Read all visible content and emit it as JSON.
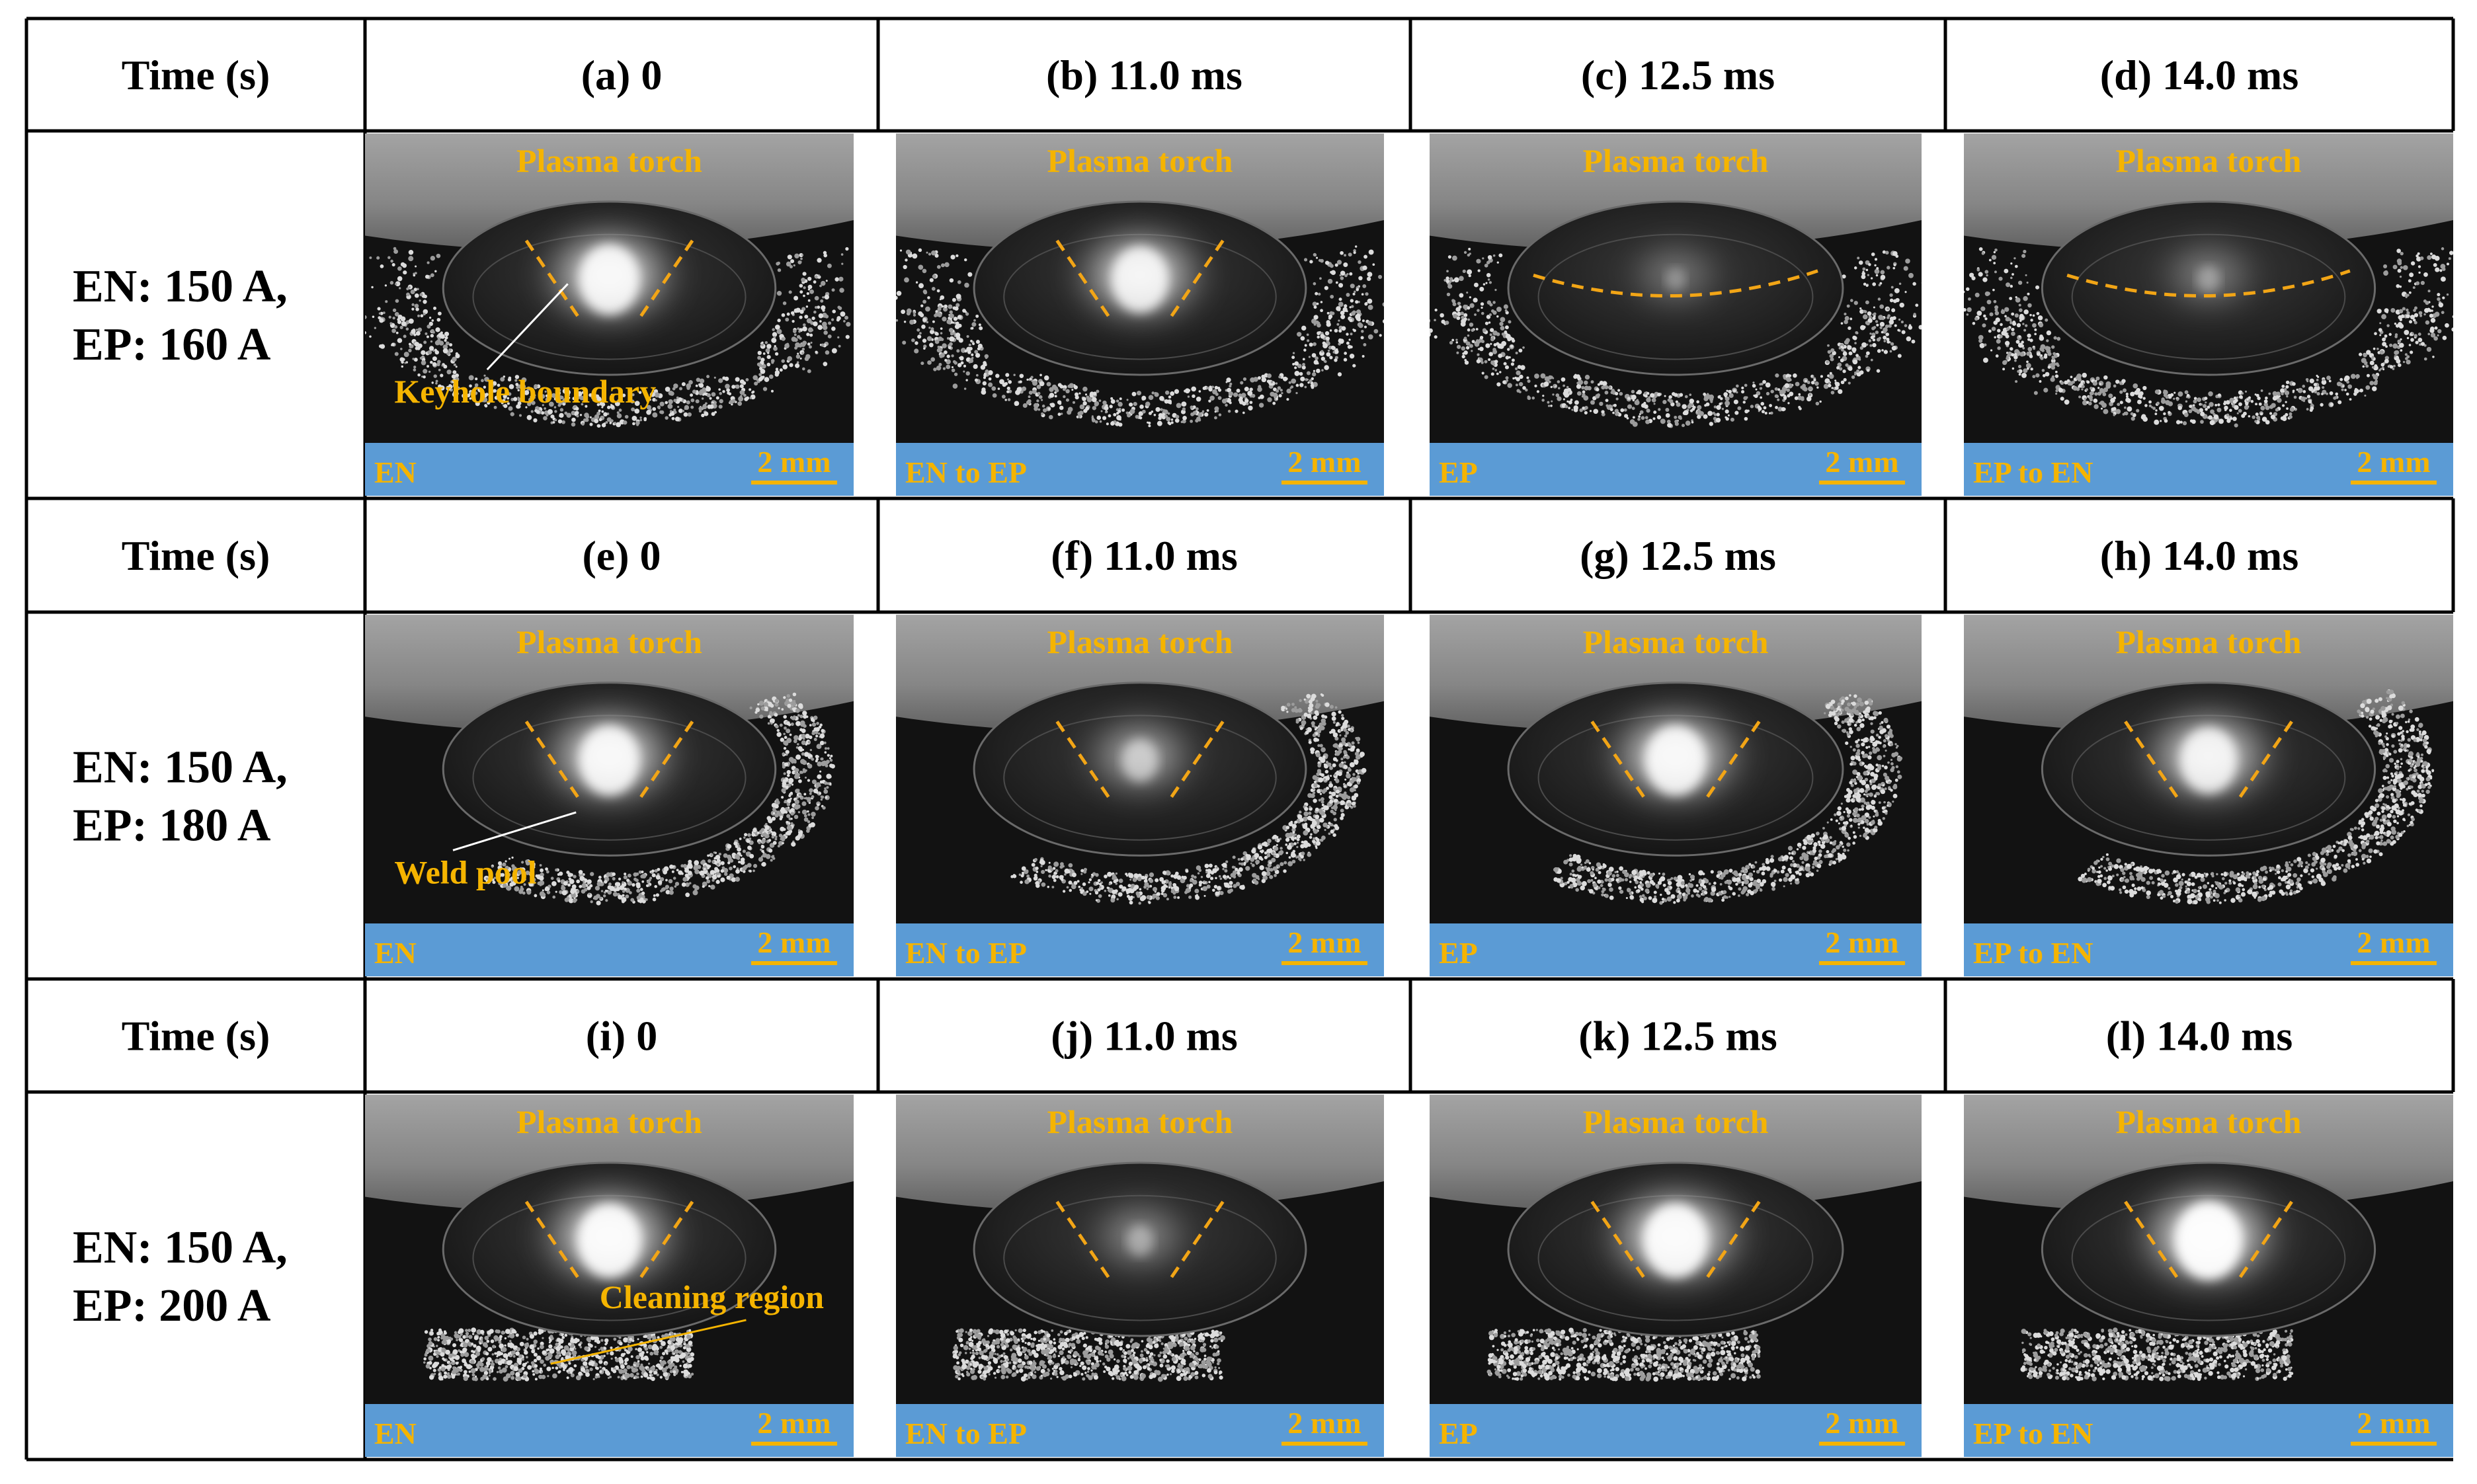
{
  "table": {
    "rows": [
      {
        "time_header": "Time (s)",
        "condition": [
          "EN: 150 A,",
          "EP: 160 A"
        ],
        "panels": [
          {
            "caption": "(a) 0",
            "polarity": "EN",
            "scale": "2 mm",
            "torch_label": "Plasma torch",
            "boundary": "v",
            "annotation": "Keyhole boundary",
            "bright": 0.9,
            "arc": 0.55
          },
          {
            "caption": "(b) 11.0 ms",
            "polarity": "EN to EP",
            "scale": "2 mm",
            "torch_label": "Plasma torch",
            "boundary": "v",
            "bright": 0.85,
            "arc": 0.55
          },
          {
            "caption": "(c) 12.5 ms",
            "polarity": "EP",
            "scale": "2 mm",
            "torch_label": "Plasma torch",
            "boundary": "curve",
            "bright": 0.3,
            "arc": 0.6
          },
          {
            "caption": "(d) 14.0 ms",
            "polarity": "EP to EN",
            "scale": "2 mm",
            "torch_label": "Plasma torch",
            "boundary": "curve",
            "bright": 0.35,
            "arc": 0.6
          }
        ]
      },
      {
        "time_header": "Time (s)",
        "condition": [
          "EN: 150 A,",
          "EP: 180 A"
        ],
        "panels": [
          {
            "caption": "(e) 0",
            "polarity": "EN",
            "scale": "2 mm",
            "torch_label": "Plasma torch",
            "boundary": "v",
            "annotation": "Weld pool",
            "bright": 0.9,
            "arc": 0.35
          },
          {
            "caption": "(f) 11.0 ms",
            "polarity": "EN to EP",
            "scale": "2 mm",
            "torch_label": "Plasma torch",
            "boundary": "v",
            "bright": 0.55,
            "arc": 0.35
          },
          {
            "caption": "(g) 12.5 ms",
            "polarity": "EP",
            "scale": "2 mm",
            "torch_label": "Plasma torch",
            "boundary": "v",
            "bright": 0.9,
            "arc": 0.35
          },
          {
            "caption": "(h) 14.0 ms",
            "polarity": "EP to EN",
            "scale": "2 mm",
            "torch_label": "Plasma torch",
            "boundary": "v",
            "bright": 0.85,
            "arc": 0.35
          }
        ]
      },
      {
        "time_header": "Time (s)",
        "condition": [
          "EN: 150 A,",
          "EP: 200 A"
        ],
        "panels": [
          {
            "caption": "(i) 0",
            "polarity": "EN",
            "scale": "2 mm",
            "torch_label": "Plasma torch",
            "boundary": "v",
            "annotation": "Cleaning region",
            "bright": 0.95,
            "arc": 0.15
          },
          {
            "caption": "(j) 11.0 ms",
            "polarity": "EN to EP",
            "scale": "2 mm",
            "torch_label": "Plasma torch",
            "boundary": "v",
            "bright": 0.4,
            "arc": 0.15
          },
          {
            "caption": "(k) 12.5 ms",
            "polarity": "EP",
            "scale": "2 mm",
            "torch_label": "Plasma torch",
            "boundary": "v",
            "bright": 0.95,
            "arc": 0.15
          },
          {
            "caption": "(l) 14.0 ms",
            "polarity": "EP to EN",
            "scale": "2 mm",
            "torch_label": "Plasma torch",
            "boundary": "v",
            "bright": 1.0,
            "arc": 0.15
          }
        ]
      }
    ]
  },
  "colors": {
    "label": "#f5b400",
    "dash": "#f2a516",
    "bar": "#5b9bd5",
    "border": "#000000",
    "background": "#ffffff"
  }
}
